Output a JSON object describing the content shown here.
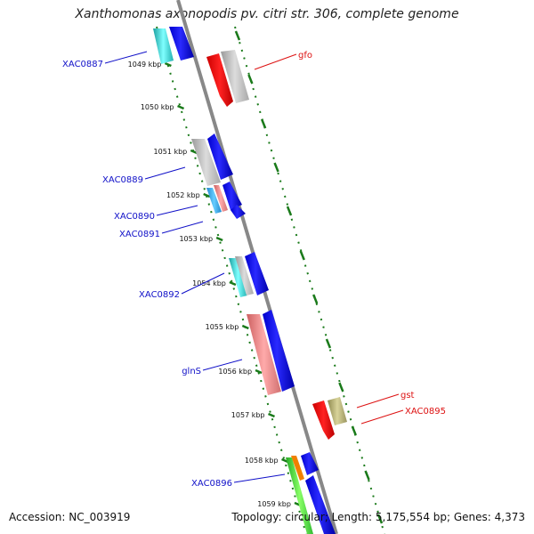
{
  "title": "Xanthomonas axonopodis pv. citri str. 306, complete genome",
  "footer": {
    "accession": "Accession: NC_003919",
    "info": "Topology: circular; Length: 5,175,554 bp; Genes: 4,373"
  },
  "colors": {
    "backbone": "#8a8a8a",
    "tick": "#1a7a1a",
    "forward_label": "#1010c8",
    "reverse_label": "#dd1111"
  },
  "ticks": [
    "1049 kbp",
    "1050 kbp",
    "1051 kbp",
    "1052 kbp",
    "1053 kbp",
    "1054 kbp",
    "1055 kbp",
    "1056 kbp",
    "1057 kbp",
    "1058 kbp",
    "1059 kbp"
  ],
  "gene_labels": {
    "left": [
      "XAC0887",
      "XAC0889",
      "XAC0890",
      "XAC0891",
      "XAC0892",
      "glnS",
      "XAC0896"
    ],
    "right": [
      "gfo",
      "gst",
      "XAC0895"
    ]
  }
}
